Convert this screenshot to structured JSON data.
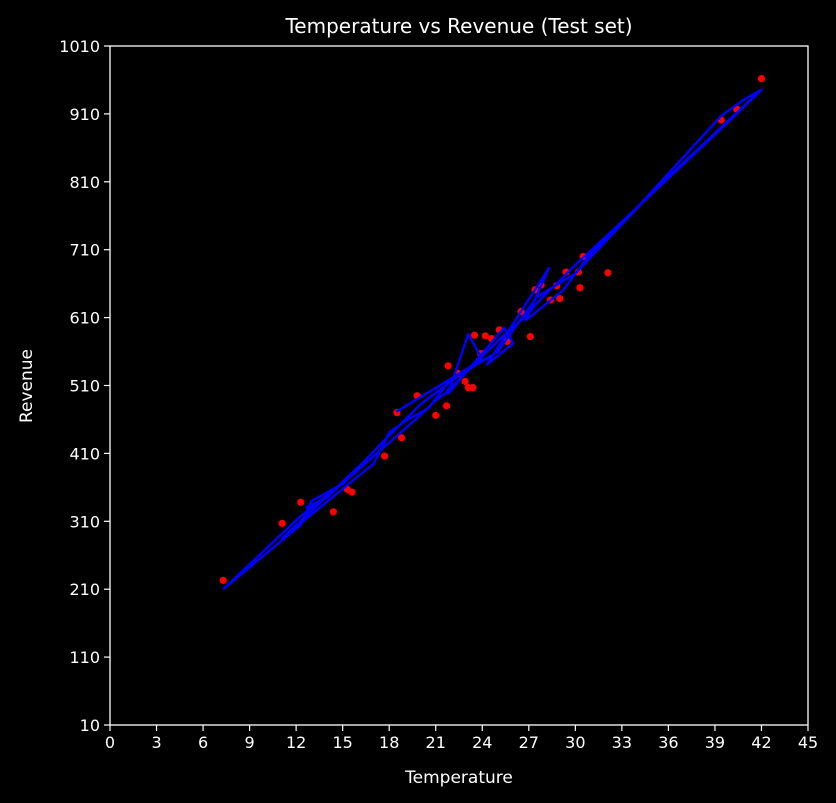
{
  "chart_data": {
    "type": "scatter",
    "title": "Temperature vs Revenue (Test set)",
    "xlabel": "Temperature",
    "ylabel": "Revenue",
    "xlim": [
      0,
      45
    ],
    "ylim": [
      10,
      1010
    ],
    "xticks": [
      0,
      3,
      6,
      9,
      12,
      15,
      18,
      21,
      24,
      27,
      30,
      33,
      36,
      39,
      42,
      45
    ],
    "yticks": [
      10,
      110,
      210,
      310,
      410,
      510,
      610,
      710,
      810,
      910,
      1010
    ],
    "grid": false,
    "background": "#000000",
    "foreground": "#ffffff",
    "series": [
      {
        "kind": "scatter",
        "color": "#ff0000",
        "points": [
          [
            7.3,
            223
          ],
          [
            11.1,
            307
          ],
          [
            12.3,
            338
          ],
          [
            14.4,
            324
          ],
          [
            15.3,
            357
          ],
          [
            15.6,
            353
          ],
          [
            17.7,
            406
          ],
          [
            18.5,
            470
          ],
          [
            18.8,
            433
          ],
          [
            19.8,
            495
          ],
          [
            21.0,
            466
          ],
          [
            21.7,
            480
          ],
          [
            21.8,
            539
          ],
          [
            22.4,
            528
          ],
          [
            22.9,
            516
          ],
          [
            23.1,
            507
          ],
          [
            23.4,
            507
          ],
          [
            23.5,
            584
          ],
          [
            23.9,
            557
          ],
          [
            24.2,
            583
          ],
          [
            24.6,
            579
          ],
          [
            25.1,
            592
          ],
          [
            25.6,
            575
          ],
          [
            26.5,
            619
          ],
          [
            27.1,
            582
          ],
          [
            27.4,
            651
          ],
          [
            27.8,
            658
          ],
          [
            28.4,
            636
          ],
          [
            28.8,
            657
          ],
          [
            29.0,
            638
          ],
          [
            29.4,
            677
          ],
          [
            30.2,
            677
          ],
          [
            30.3,
            654
          ],
          [
            30.5,
            700
          ],
          [
            32.1,
            676
          ],
          [
            39.4,
            901
          ],
          [
            40.4,
            917
          ],
          [
            42.0,
            962
          ]
        ]
      },
      {
        "kind": "line",
        "color": "#0000ff",
        "points": [
          [
            7.3,
            210
          ],
          [
            11.1,
            292
          ],
          [
            12.3,
            318
          ],
          [
            14.4,
            356
          ],
          [
            15.3,
            372
          ],
          [
            15.6,
            378
          ],
          [
            17.7,
            420
          ],
          [
            18.5,
            436
          ],
          [
            18.8,
            442
          ],
          [
            19.8,
            462
          ],
          [
            21.0,
            488
          ],
          [
            21.7,
            500
          ],
          [
            21.8,
            504
          ],
          [
            22.4,
            516
          ],
          [
            22.9,
            528
          ],
          [
            23.1,
            532
          ],
          [
            23.4,
            540
          ],
          [
            23.5,
            542
          ],
          [
            23.9,
            550
          ],
          [
            24.2,
            558
          ],
          [
            24.6,
            566
          ],
          [
            25.1,
            578
          ],
          [
            25.6,
            588
          ],
          [
            26.5,
            606
          ],
          [
            27.1,
            620
          ],
          [
            27.4,
            628
          ],
          [
            27.8,
            638
          ],
          [
            28.4,
            652
          ],
          [
            28.8,
            660
          ],
          [
            29.0,
            664
          ],
          [
            29.4,
            674
          ],
          [
            30.2,
            692
          ],
          [
            30.3,
            694
          ],
          [
            30.5,
            698
          ],
          [
            32.1,
            732
          ],
          [
            39.4,
            888
          ],
          [
            40.4,
            910
          ],
          [
            42.0,
            946
          ]
        ]
      },
      {
        "kind": "line",
        "color": "#0000ff",
        "points": [
          [
            12.6,
            330
          ],
          [
            14.0,
            345
          ],
          [
            16.1,
            392
          ],
          [
            11.1,
            285
          ],
          [
            17.0,
            395
          ],
          [
            18.0,
            441
          ],
          [
            19.2,
            460
          ],
          [
            20.5,
            476
          ],
          [
            22.0,
            520
          ],
          [
            18.5,
            472
          ],
          [
            24.0,
            548
          ],
          [
            23.1,
            586
          ],
          [
            21.8,
            498
          ],
          [
            25.4,
            595
          ],
          [
            26.0,
            572
          ],
          [
            24.3,
            541
          ],
          [
            28.3,
            683
          ],
          [
            26.8,
            606
          ],
          [
            29.2,
            650
          ],
          [
            31.0,
            705
          ],
          [
            33.5,
            760
          ],
          [
            39.4,
            907
          ],
          [
            40.8,
            930
          ],
          [
            42.0,
            946
          ],
          [
            35.0,
            796
          ],
          [
            30.0,
            675
          ],
          [
            27.5,
            640
          ],
          [
            25.0,
            560
          ],
          [
            22.5,
            525
          ],
          [
            20.0,
            482
          ],
          [
            17.5,
            425
          ],
          [
            15.0,
            365
          ],
          [
            13.0,
            340
          ],
          [
            12.3,
            305
          ],
          [
            7.3,
            210
          ]
        ]
      }
    ]
  }
}
